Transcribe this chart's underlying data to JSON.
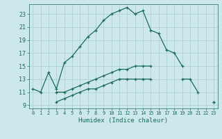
{
  "title": "",
  "xlabel": "Humidex (Indice chaleur)",
  "ylabel": "",
  "bg_color": "#cce8ea",
  "grid_color": "#aacdd0",
  "line_color": "#1a6b5a",
  "x_ticks": [
    0,
    1,
    2,
    3,
    4,
    5,
    6,
    7,
    8,
    9,
    10,
    11,
    12,
    13,
    14,
    15,
    16,
    17,
    18,
    19,
    20,
    21,
    22,
    23
  ],
  "y_ticks": [
    9,
    11,
    13,
    15,
    17,
    19,
    21,
    23
  ],
  "xlim": [
    -0.5,
    23.5
  ],
  "ylim": [
    8.5,
    24.5
  ],
  "line1_x": [
    0,
    1,
    2,
    3,
    4,
    5,
    6,
    7,
    8,
    9,
    10,
    11,
    12,
    13,
    14,
    15,
    16,
    17,
    18,
    19
  ],
  "line1_y": [
    11.5,
    11.0,
    14.0,
    11.5,
    15.5,
    16.5,
    18.0,
    19.5,
    20.5,
    22.0,
    23.0,
    23.5,
    24.0,
    23.0,
    23.5,
    20.5,
    20.0,
    17.5,
    17.0,
    15.0
  ],
  "line2_y": [
    11.0,
    11.0,
    11.5,
    12.0,
    12.5,
    13.0,
    13.5,
    14.0,
    14.5,
    14.5,
    15.0,
    15.0,
    15.0,
    9.5
  ],
  "line2_segments": [
    [
      3,
      4,
      5,
      6,
      7,
      8,
      9,
      10,
      11,
      12,
      13,
      14,
      15
    ],
    [
      23
    ]
  ],
  "line2_y_segments": [
    [
      11.0,
      11.0,
      11.5,
      12.0,
      12.5,
      13.0,
      13.5,
      14.0,
      14.5,
      14.5,
      15.0,
      15.0,
      15.0
    ],
    [
      9.5
    ]
  ],
  "line3_segments_x": [
    [
      3,
      4,
      5,
      6,
      7,
      8,
      9,
      10,
      11,
      12,
      13,
      14,
      15
    ],
    [
      19,
      20,
      21
    ],
    [
      23
    ]
  ],
  "line3_segments_y": [
    [
      9.5,
      10.0,
      10.5,
      11.0,
      11.5,
      11.5,
      12.0,
      12.5,
      13.0,
      13.0,
      13.0,
      13.0,
      13.0
    ],
    [
      13.0,
      13.0,
      11.0
    ],
    [
      9.5
    ]
  ]
}
